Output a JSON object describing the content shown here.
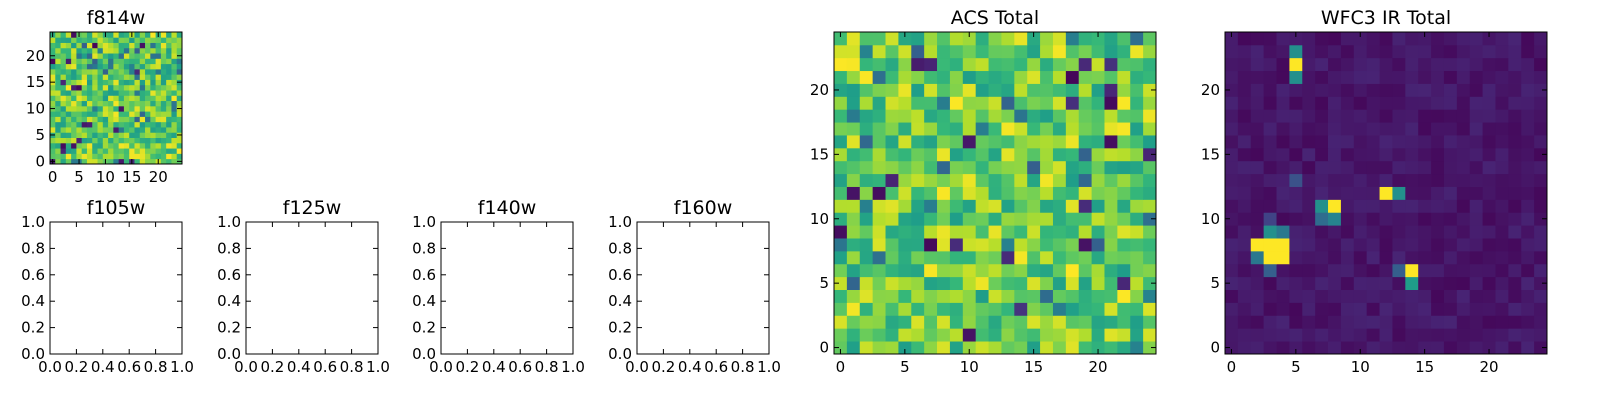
{
  "chart_data": [
    {
      "type": "heatmap",
      "title": "f814w",
      "grid_size": [
        25,
        25
      ],
      "xlim": [
        -0.5,
        24.5
      ],
      "ylim": [
        -0.5,
        24.5
      ],
      "x_ticks": [
        0,
        5,
        10,
        15,
        20
      ],
      "y_ticks": [
        0,
        5,
        10,
        15,
        20
      ],
      "x_tick_labels": [
        "0",
        "5",
        "10",
        "15",
        "20"
      ],
      "y_tick_labels": [
        "0",
        "5",
        "10",
        "15",
        "20"
      ],
      "colormap": "viridis",
      "values_description_note": ""
    },
    {
      "type": "empty",
      "title": "f105w",
      "xlim": [
        0,
        1
      ],
      "ylim": [
        0,
        1
      ],
      "x_ticks": [
        0,
        0.2,
        0.4,
        0.6,
        0.8,
        1.0
      ],
      "y_ticks": [
        0,
        0.2,
        0.4,
        0.6,
        0.8,
        1.0
      ],
      "x_tick_labels": [
        "0.0",
        "0.2",
        "0.4",
        "0.6",
        "0.8",
        "1.0"
      ],
      "y_tick_labels": [
        "0.0",
        "0.2",
        "0.4",
        "0.6",
        "0.8",
        "1.0"
      ]
    },
    {
      "type": "empty",
      "title": "f125w",
      "xlim": [
        0,
        1
      ],
      "ylim": [
        0,
        1
      ],
      "x_ticks": [
        0,
        0.2,
        0.4,
        0.6,
        0.8,
        1.0
      ],
      "y_ticks": [
        0,
        0.2,
        0.4,
        0.6,
        0.8,
        1.0
      ],
      "x_tick_labels": [
        "0.0",
        "0.2",
        "0.4",
        "0.6",
        "0.8",
        "1.0"
      ],
      "y_tick_labels": [
        "0.0",
        "0.2",
        "0.4",
        "0.6",
        "0.8",
        "1.0"
      ]
    },
    {
      "type": "empty",
      "title": "f140w",
      "xlim": [
        0,
        1
      ],
      "ylim": [
        0,
        1
      ],
      "x_ticks": [
        0,
        0.2,
        0.4,
        0.6,
        0.8,
        1.0
      ],
      "y_ticks": [
        0,
        0.2,
        0.4,
        0.6,
        0.8,
        1.0
      ],
      "x_tick_labels": [
        "0.0",
        "0.2",
        "0.4",
        "0.6",
        "0.8",
        "1.0"
      ],
      "y_tick_labels": [
        "0.0",
        "0.2",
        "0.4",
        "0.6",
        "0.8",
        "1.0"
      ]
    },
    {
      "type": "empty",
      "title": "f160w",
      "xlim": [
        0,
        1
      ],
      "ylim": [
        0,
        1
      ],
      "x_ticks": [
        0,
        0.2,
        0.4,
        0.6,
        0.8,
        1.0
      ],
      "y_ticks": [
        0,
        0.2,
        0.4,
        0.6,
        0.8,
        1.0
      ],
      "x_tick_labels": [
        "0.0",
        "0.2",
        "0.4",
        "0.6",
        "0.8",
        "1.0"
      ],
      "y_tick_labels": [
        "0.0",
        "0.2",
        "0.4",
        "0.6",
        "0.8",
        "1.0"
      ]
    },
    {
      "type": "heatmap",
      "title": "ACS Total",
      "grid_size": [
        25,
        25
      ],
      "xlim": [
        -0.5,
        24.5
      ],
      "ylim": [
        -0.5,
        24.5
      ],
      "x_ticks": [
        0,
        5,
        10,
        15,
        20
      ],
      "y_ticks": [
        0,
        5,
        10,
        15,
        20
      ],
      "x_tick_labels": [
        "0",
        "5",
        "10",
        "15",
        "20"
      ],
      "y_tick_labels": [
        "0",
        "5",
        "10",
        "15",
        "20"
      ],
      "colormap": "viridis"
    },
    {
      "type": "heatmap",
      "title": "WFC3 IR Total",
      "grid_size": [
        25,
        25
      ],
      "xlim": [
        -0.5,
        24.5
      ],
      "ylim": [
        -0.5,
        24.5
      ],
      "x_ticks": [
        0,
        5,
        10,
        15,
        20
      ],
      "y_ticks": [
        0,
        5,
        10,
        15,
        20
      ],
      "x_tick_labels": [
        "0",
        "5",
        "10",
        "15",
        "20"
      ],
      "y_tick_labels": [
        "0",
        "5",
        "10",
        "15",
        "20"
      ],
      "colormap": "viridis",
      "bright_spots": [
        {
          "x": 5,
          "y": 22,
          "v": 1.0
        },
        {
          "x": 5,
          "y": 23,
          "v": 0.5
        },
        {
          "x": 5,
          "y": 21,
          "v": 0.5
        },
        {
          "x": 8,
          "y": 11,
          "v": 1.0
        },
        {
          "x": 7,
          "y": 11,
          "v": 0.5
        },
        {
          "x": 8,
          "y": 10,
          "v": 0.45
        },
        {
          "x": 7,
          "y": 10,
          "v": 0.35
        },
        {
          "x": 12,
          "y": 12,
          "v": 1.0
        },
        {
          "x": 13,
          "y": 12,
          "v": 0.5
        },
        {
          "x": 2,
          "y": 8,
          "v": 1.0
        },
        {
          "x": 3,
          "y": 8,
          "v": 1.0
        },
        {
          "x": 4,
          "y": 8,
          "v": 1.0
        },
        {
          "x": 3,
          "y": 7,
          "v": 1.0
        },
        {
          "x": 4,
          "y": 7,
          "v": 1.0
        },
        {
          "x": 3,
          "y": 9,
          "v": 0.5
        },
        {
          "x": 4,
          "y": 9,
          "v": 0.4
        },
        {
          "x": 2,
          "y": 7,
          "v": 0.4
        },
        {
          "x": 3,
          "y": 6,
          "v": 0.3
        },
        {
          "x": 14,
          "y": 6,
          "v": 1.0
        },
        {
          "x": 14,
          "y": 5,
          "v": 0.55
        },
        {
          "x": 13,
          "y": 6,
          "v": 0.3
        },
        {
          "x": 5,
          "y": 13,
          "v": 0.25
        },
        {
          "x": 3,
          "y": 10,
          "v": 0.2
        }
      ]
    }
  ]
}
